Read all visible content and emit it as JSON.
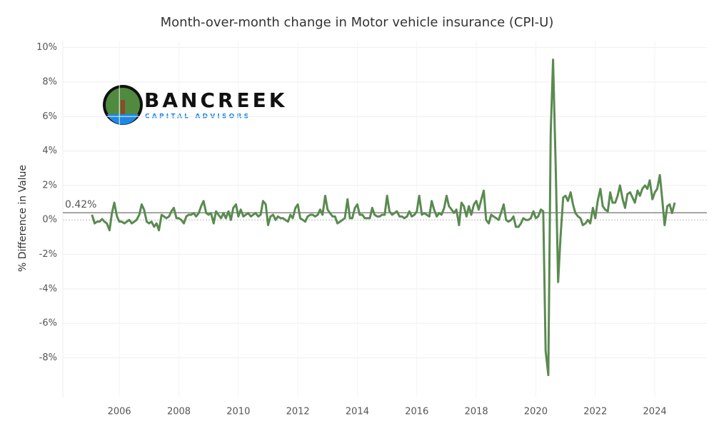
{
  "chart_data": {
    "type": "line",
    "title": "Month-over-month change in Motor vehicle insurance (CPI-U)",
    "y_label": "% Difference in Value",
    "logo": {
      "name": "BANCREEK",
      "tagline": "CAPITAL ADVISORS"
    },
    "color": "#5a8a50",
    "reference": {
      "value": 0.42,
      "label": "0.42%"
    },
    "grid": true,
    "xlim": [
      2004.1,
      2025.75
    ],
    "ylim": [
      -10.3,
      10.4
    ],
    "xticks": [
      2006,
      2008,
      2010,
      2012,
      2014,
      2016,
      2018,
      2020,
      2022,
      2024
    ],
    "yticks": [
      {
        "value": -8,
        "label": "-8%"
      },
      {
        "value": -6,
        "label": "-6%"
      },
      {
        "value": -4,
        "label": "-4%"
      },
      {
        "value": -2,
        "label": "-2%"
      },
      {
        "value": 0,
        "label": "0%"
      },
      {
        "value": 2,
        "label": "2%"
      },
      {
        "value": 4,
        "label": "4%"
      },
      {
        "value": 6,
        "label": "6%"
      },
      {
        "value": 8,
        "label": "8%"
      },
      {
        "value": 10,
        "label": "10%"
      }
    ],
    "x": [
      2005.08,
      2005.17,
      2005.25,
      2005.33,
      2005.42,
      2005.5,
      2005.58,
      2005.67,
      2005.75,
      2005.83,
      2005.92,
      2006,
      2006.08,
      2006.17,
      2006.25,
      2006.33,
      2006.42,
      2006.5,
      2006.58,
      2006.67,
      2006.75,
      2006.83,
      2006.92,
      2007,
      2007.08,
      2007.17,
      2007.25,
      2007.33,
      2007.42,
      2007.5,
      2007.58,
      2007.67,
      2007.75,
      2007.83,
      2007.92,
      2008,
      2008.08,
      2008.17,
      2008.25,
      2008.33,
      2008.42,
      2008.5,
      2008.58,
      2008.67,
      2008.75,
      2008.83,
      2008.92,
      2009,
      2009.08,
      2009.17,
      2009.25,
      2009.33,
      2009.42,
      2009.5,
      2009.58,
      2009.67,
      2009.75,
      2009.83,
      2009.92,
      2010,
      2010.08,
      2010.17,
      2010.25,
      2010.33,
      2010.42,
      2010.5,
      2010.58,
      2010.67,
      2010.75,
      2010.83,
      2010.92,
      2011,
      2011.08,
      2011.17,
      2011.25,
      2011.33,
      2011.42,
      2011.5,
      2011.58,
      2011.67,
      2011.75,
      2011.83,
      2011.92,
      2012,
      2012.08,
      2012.17,
      2012.25,
      2012.33,
      2012.42,
      2012.5,
      2012.58,
      2012.67,
      2012.75,
      2012.83,
      2012.92,
      2013,
      2013.08,
      2013.17,
      2013.25,
      2013.33,
      2013.42,
      2013.5,
      2013.58,
      2013.67,
      2013.75,
      2013.83,
      2013.92,
      2014,
      2014.08,
      2014.17,
      2014.25,
      2014.33,
      2014.42,
      2014.5,
      2014.58,
      2014.67,
      2014.75,
      2014.83,
      2014.92,
      2015,
      2015.08,
      2015.17,
      2015.25,
      2015.33,
      2015.42,
      2015.5,
      2015.58,
      2015.67,
      2015.75,
      2015.83,
      2015.92,
      2016,
      2016.08,
      2016.17,
      2016.25,
      2016.33,
      2016.42,
      2016.5,
      2016.58,
      2016.67,
      2016.75,
      2016.83,
      2016.92,
      2017,
      2017.08,
      2017.17,
      2017.25,
      2017.33,
      2017.42,
      2017.5,
      2017.58,
      2017.67,
      2017.75,
      2017.83,
      2017.92,
      2018,
      2018.08,
      2018.17,
      2018.25,
      2018.33,
      2018.42,
      2018.5,
      2018.58,
      2018.67,
      2018.75,
      2018.83,
      2018.92,
      2019,
      2019.08,
      2019.17,
      2019.25,
      2019.33,
      2019.42,
      2019.5,
      2019.58,
      2019.67,
      2019.75,
      2019.83,
      2019.92,
      2020,
      2020.08,
      2020.17,
      2020.25,
      2020.33,
      2020.42,
      2020.5,
      2020.58,
      2020.67,
      2020.75,
      2020.83,
      2020.92,
      2021,
      2021.08,
      2021.17,
      2021.25,
      2021.33,
      2021.42,
      2021.5,
      2021.58,
      2021.67,
      2021.75,
      2021.83,
      2021.92,
      2022,
      2022.08,
      2022.17,
      2022.25,
      2022.33,
      2022.42,
      2022.5,
      2022.58,
      2022.67,
      2022.75,
      2022.83,
      2022.92,
      2023,
      2023.08,
      2023.17,
      2023.25,
      2023.33,
      2023.42,
      2023.5,
      2023.58,
      2023.67,
      2023.75,
      2023.83,
      2023.92,
      2024,
      2024.08,
      2024.17,
      2024.25,
      2024.33,
      2024.42,
      2024.5,
      2024.58,
      2024.67
    ],
    "values": [
      0.3,
      -0.2,
      -0.1,
      -0.1,
      0.05,
      -0.1,
      -0.2,
      -0.6,
      0.4,
      1.0,
      0.2,
      -0.1,
      -0.1,
      -0.2,
      -0.1,
      0.0,
      -0.2,
      -0.1,
      0.0,
      0.3,
      0.9,
      0.6,
      -0.1,
      -0.2,
      -0.1,
      -0.4,
      -0.2,
      -0.6,
      0.3,
      0.2,
      0.1,
      0.2,
      0.5,
      0.7,
      0.1,
      0.1,
      0.0,
      -0.2,
      0.2,
      0.3,
      0.3,
      0.4,
      0.2,
      0.4,
      0.8,
      1.1,
      0.4,
      0.3,
      0.4,
      -0.2,
      0.5,
      0.3,
      0.1,
      0.4,
      0.1,
      0.5,
      0.0,
      0.7,
      0.9,
      0.2,
      0.6,
      0.2,
      0.3,
      0.4,
      0.2,
      0.3,
      0.4,
      0.2,
      0.3,
      1.1,
      0.9,
      -0.3,
      0.2,
      0.3,
      0.0,
      0.2,
      0.1,
      0.1,
      0.0,
      -0.1,
      0.3,
      0.1,
      0.7,
      0.9,
      0.1,
      0.0,
      -0.1,
      0.2,
      0.3,
      0.3,
      0.2,
      0.3,
      0.6,
      0.3,
      1.4,
      0.6,
      0.4,
      0.2,
      0.2,
      -0.2,
      -0.1,
      0.0,
      0.1,
      1.2,
      0.1,
      0.1,
      0.7,
      0.9,
      0.3,
      0.3,
      0.1,
      0.1,
      0.1,
      0.7,
      0.3,
      0.2,
      0.2,
      0.3,
      0.3,
      1.4,
      0.5,
      0.3,
      0.4,
      0.5,
      0.2,
      0.2,
      0.1,
      0.2,
      0.5,
      0.2,
      0.3,
      0.5,
      1.4,
      0.3,
      0.4,
      0.3,
      0.2,
      1.1,
      0.6,
      0.2,
      0.4,
      0.3,
      0.7,
      1.4,
      0.8,
      0.6,
      0.4,
      0.6,
      -0.3,
      1.0,
      0.8,
      0.2,
      0.8,
      0.3,
      0.9,
      1.1,
      0.6,
      1.2,
      1.7,
      0.0,
      -0.2,
      0.3,
      0.2,
      0.1,
      0.0,
      0.4,
      0.9,
      0.0,
      -0.1,
      0.0,
      0.2,
      -0.4,
      -0.4,
      -0.2,
      0.1,
      0.0,
      0.0,
      0.1,
      0.5,
      0.1,
      0.2,
      0.6,
      0.5,
      -7.6,
      -9.0,
      5.0,
      9.3,
      3.0,
      -3.6,
      -1.0,
      1.3,
      1.4,
      1.1,
      1.6,
      0.9,
      0.4,
      0.2,
      0.1,
      -0.3,
      -0.2,
      0.0,
      -0.2,
      0.7,
      0.1,
      1.1,
      1.8,
      0.8,
      0.6,
      0.5,
      1.6,
      1.0,
      1.0,
      1.4,
      2.0,
      1.2,
      0.7,
      1.5,
      1.6,
      1.3,
      1.0,
      1.7,
      1.4,
      1.8,
      2.0,
      1.8,
      2.3,
      1.2,
      1.6,
      1.8,
      2.6,
      1.2,
      -0.3,
      0.8,
      0.9,
      0.4,
      1.0
    ]
  }
}
